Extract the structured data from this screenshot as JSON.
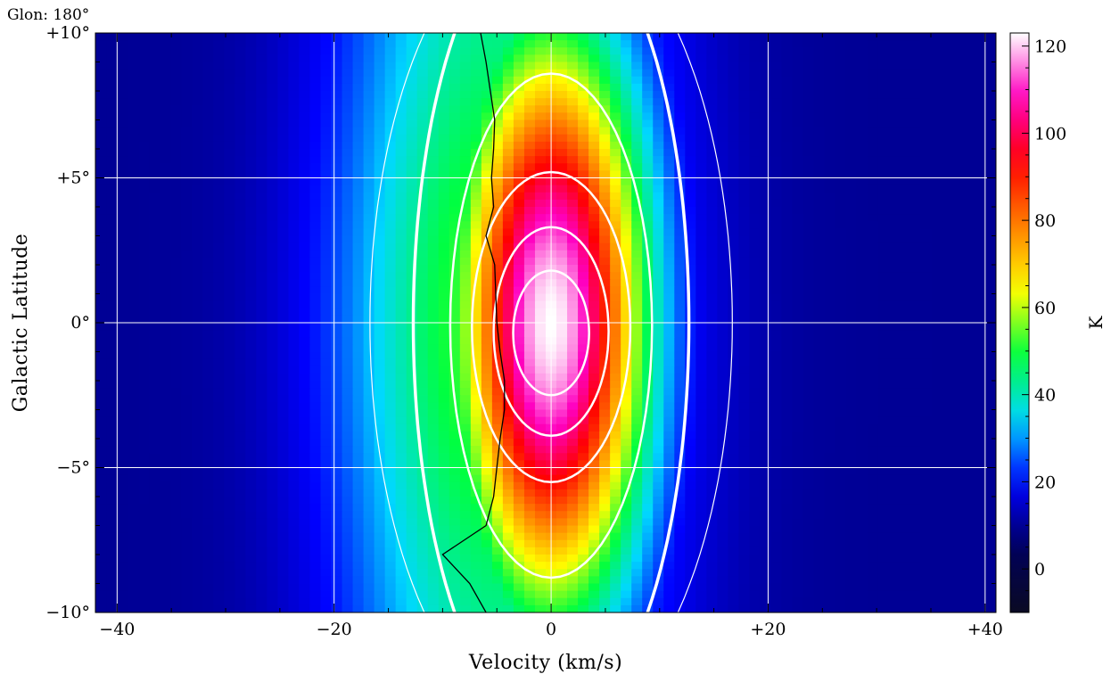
{
  "panel_label": "Glon: 180°",
  "chart_data": {
    "type": "heatmap",
    "xlabel": "Velocity (km/s)",
    "ylabel": "Galactic Latitude",
    "xlim": [
      -42,
      41
    ],
    "ylim": [
      -10,
      10
    ],
    "x_ticks": [
      -40,
      -20,
      0,
      20,
      40
    ],
    "x_tick_labels": [
      "−40",
      "−20",
      "0",
      "+20",
      "+40"
    ],
    "y_ticks": [
      -10,
      -5,
      0,
      5,
      10
    ],
    "y_tick_labels": [
      "−10°",
      "−5°",
      "0°",
      "+5°",
      "+10°"
    ],
    "grid": true,
    "colorbar": {
      "label": "K",
      "range": [
        -10,
        123
      ],
      "ticks": [
        0,
        20,
        40,
        60,
        80,
        100,
        120
      ],
      "tick_labels": [
        "0",
        "20",
        "40",
        "60",
        "80",
        "100",
        "120"
      ],
      "colormap_stops": [
        "#0a0a23",
        "#00005a",
        "#0000ff",
        "#00d8ff",
        "#00ff40",
        "#ffff00",
        "#ff8000",
        "#ff0000",
        "#ff00c0",
        "#ffffff"
      ]
    },
    "emission_profile": {
      "center_velocity": 0,
      "peak_brightness_K": 123,
      "background_K": 10,
      "core_width_kms": 6,
      "wing_width_kms": 10,
      "latitude_width_deg": 7
    },
    "model_contours": [
      {
        "half_width_kms": 3.5,
        "lat_top": 1.8,
        "lat_bottom": -2.5,
        "stroke": 2.5
      },
      {
        "half_width_kms": 5.3,
        "lat_top": 3.3,
        "lat_bottom": -3.9,
        "stroke": 2.5
      },
      {
        "half_width_kms": 7.3,
        "lat_top": 5.2,
        "lat_bottom": -5.5,
        "stroke": 2.5
      },
      {
        "half_width_kms": 9.3,
        "lat_top": 8.6,
        "lat_bottom": -8.8,
        "stroke": 2.5
      },
      {
        "half_width_kms": 12.7,
        "lat_top": 10,
        "lat_bottom": -10,
        "stroke": 3.5
      },
      {
        "half_width_kms": 16.7,
        "lat_top": 10,
        "lat_bottom": -10,
        "stroke": 1.2
      }
    ],
    "mean_velocity_curve": {
      "latitude": [
        10,
        9,
        8,
        7,
        6,
        5,
        4,
        3,
        2,
        1,
        0,
        -1,
        -2,
        -3,
        -4,
        -5,
        -6,
        -7,
        -8,
        -9,
        -10
      ],
      "velocity": [
        -6.5,
        -6.0,
        -5.6,
        -5.2,
        -5.3,
        -5.5,
        -5.3,
        -6.0,
        -5.2,
        -5.1,
        -5.0,
        -4.7,
        -4.3,
        -4.3,
        -4.7,
        -5.0,
        -5.3,
        -6.0,
        -10.0,
        -7.5,
        -6.0
      ]
    }
  }
}
